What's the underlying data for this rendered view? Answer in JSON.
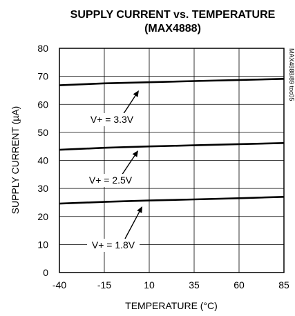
{
  "chart_data": {
    "type": "line",
    "title": "SUPPLY CURRENT vs. TEMPERATURE",
    "subtitle": "(MAX4888)",
    "xlabel": "TEMPERATURE (°C)",
    "ylabel": "SUPPLY CURRENT (µA)",
    "side_label": "MAX4888/89 toc05",
    "xlim": [
      -40,
      85
    ],
    "ylim": [
      0,
      80
    ],
    "x_ticks": [
      "-40",
      "-15",
      "10",
      "35",
      "60",
      "85"
    ],
    "y_ticks": [
      "0",
      "10",
      "20",
      "30",
      "40",
      "50",
      "60",
      "70",
      "80"
    ],
    "grid": true,
    "x": [
      -40,
      -15,
      10,
      35,
      60,
      85
    ],
    "series": [
      {
        "name": "V+ = 3.3V",
        "values": [
          66.8,
          67.5,
          67.9,
          68.3,
          68.7,
          69.1
        ]
      },
      {
        "name": "V+ = 2.5V",
        "values": [
          43.8,
          44.5,
          45.0,
          45.4,
          45.8,
          46.2
        ]
      },
      {
        "name": "V+ = 1.8V",
        "values": [
          24.6,
          25.2,
          25.7,
          26.1,
          26.5,
          27.0
        ]
      }
    ]
  }
}
